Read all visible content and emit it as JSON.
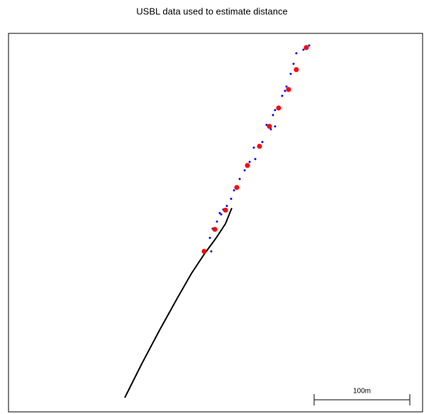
{
  "chart_data": {
    "type": "scatter",
    "title": "USBL data used to estimate distance",
    "xlim": [
      0,
      432.6
    ],
    "ylim": [
      0,
      394.8
    ],
    "scale_bar": {
      "value": 100,
      "label": "100m"
    },
    "series": [
      {
        "style": "line",
        "color": "#000000",
        "x": [
          121.5,
          139.3,
          157.8,
          176.3,
          191.1,
          204.4,
          217.0,
          226.7,
          233.3
        ],
        "values": [
          14.8,
          50.4,
          85.2,
          118.5,
          144.4,
          164.4,
          181.5,
          196.3,
          212.6
        ]
      },
      {
        "style": "point",
        "size": 1.5,
        "color": "#0000ff",
        "x": [
          314.1,
          308.1,
          300.7,
          297.8,
          294.8,
          288.9,
          285.9,
          290.4,
          278.5,
          276.3,
          274.1,
          269.6,
          278.5,
          256.3,
          265.2,
          251.9,
          257.8,
          246.7,
          241.5,
          235.6,
          232.6,
          224.4,
          222.2,
          220.7,
          228.1,
          213.3,
          210.4,
          217.8,
          211.8
        ],
        "values": [
          382.2,
          377.8,
          374.1,
          363.0,
          352.6,
          334.8,
          329.6,
          339.3,
          314.8,
          309.6,
          294.8,
          299.3,
          297.8,
          275.6,
          281.5,
          260.7,
          263.7,
          251.9,
          243.0,
          231.1,
          222.2,
          211.1,
          205.9,
          207.4,
          214.8,
          191.1,
          181.5,
          198.5,
          167.4
        ]
      },
      {
        "style": "point",
        "size": 3.5,
        "color": "#ff0000",
        "x": [
          311.1,
          300.7,
          292.6,
          282.2,
          272.6,
          262.2,
          249.6,
          238.5,
          226.7,
          215.6,
          204.4
        ],
        "values": [
          380.0,
          357.0,
          336.3,
          317.0,
          297.8,
          277.0,
          257.0,
          234.1,
          210.4,
          190.4,
          167.4
        ]
      }
    ]
  }
}
